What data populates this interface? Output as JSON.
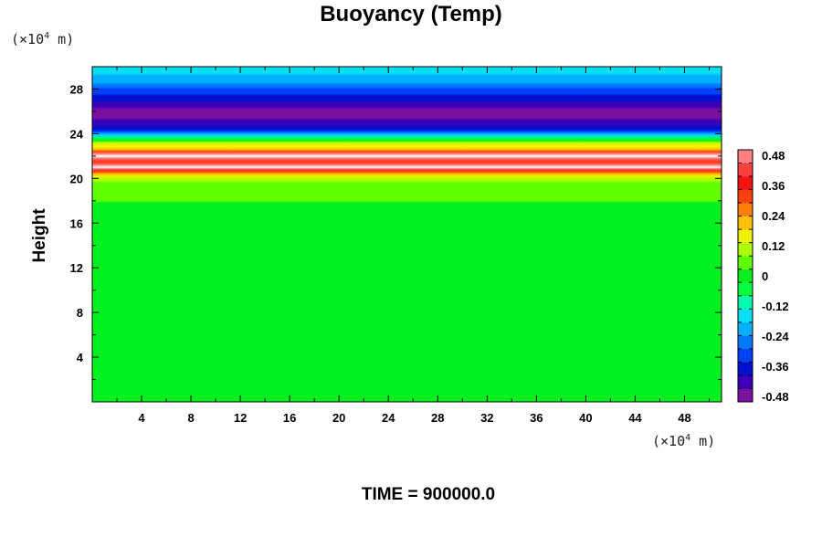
{
  "chart_data": {
    "type": "heatmap",
    "title": "Buoyancy (Temp)",
    "ylabel": "Height",
    "xunit": "(×10⁴ m)",
    "yunit": "(×10⁴ m)",
    "unit_mantissa": "(×10",
    "unit_exponent": "4",
    "unit_suffix": " m)",
    "footer": "TIME = 900000.0",
    "xlim": [
      0,
      51
    ],
    "ylim": [
      0,
      30
    ],
    "xticks": [
      4,
      8,
      12,
      16,
      20,
      24,
      28,
      32,
      36,
      40,
      44,
      48
    ],
    "yticks": [
      4,
      8,
      12,
      16,
      20,
      24,
      28
    ],
    "colorbar": {
      "range": [
        -0.48,
        0.48
      ],
      "tick_labels": [
        "0.48",
        "0.36",
        "0.24",
        "0.12",
        "0",
        "-0.12",
        "-0.24",
        "-0.36",
        "-0.48"
      ],
      "colors": [
        "#7a0fa0",
        "#3a00b8",
        "#0010d0",
        "#0040ff",
        "#0078ff",
        "#00b0ff",
        "#00e0f0",
        "#00ffb0",
        "#00ff40",
        "#00f020",
        "#60ff00",
        "#b0ff00",
        "#f0f000",
        "#ffc000",
        "#ff8000",
        "#ff4010",
        "#ff1010",
        "#ff4040",
        "#ff8080"
      ]
    },
    "vertical_profile": [
      {
        "y": 0,
        "value": 0.0
      },
      {
        "y": 16,
        "value": 0.0
      },
      {
        "y": 19.6,
        "value": 0.05
      },
      {
        "y": 20.2,
        "value": 0.14
      },
      {
        "y": 20.6,
        "value": 0.3
      },
      {
        "y": 21.0,
        "value": 0.55
      },
      {
        "y": 21.4,
        "value": 0.32
      },
      {
        "y": 22.0,
        "value": 0.55
      },
      {
        "y": 22.6,
        "value": 0.2
      },
      {
        "y": 23.2,
        "value": 0.1
      },
      {
        "y": 23.7,
        "value": -0.1
      },
      {
        "y": 24.2,
        "value": -0.3
      },
      {
        "y": 25.0,
        "value": -0.42
      },
      {
        "y": 26.0,
        "value": -0.46
      },
      {
        "y": 27.2,
        "value": -0.36
      },
      {
        "y": 28.3,
        "value": -0.26
      },
      {
        "y": 29.0,
        "value": -0.18
      },
      {
        "y": 30.0,
        "value": -0.17
      }
    ]
  }
}
